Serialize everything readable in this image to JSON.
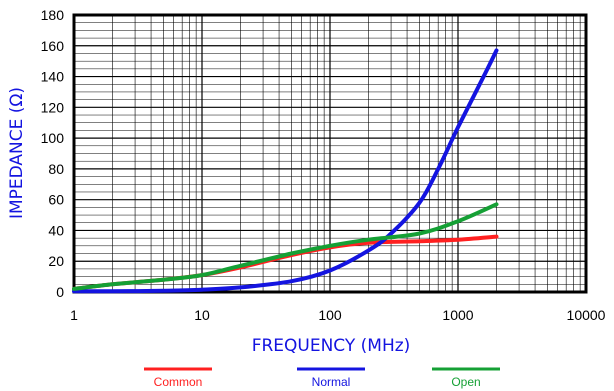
{
  "chart_data": {
    "type": "line",
    "xlabel": "FREQUENCY (MHz)",
    "ylabel": "IMPEDANCE (Ω)",
    "x_scale": "log",
    "xlim": [
      1,
      10000
    ],
    "ylim": [
      0,
      180
    ],
    "grid": true,
    "x_ticks": [
      "1",
      "10",
      "100",
      "1000",
      "10000"
    ],
    "y_ticks": [
      "0",
      "20",
      "40",
      "60",
      "80",
      "100",
      "120",
      "140",
      "160",
      "180"
    ],
    "legend_position": "bottom",
    "series": [
      {
        "name": "Common",
        "color": "#ff2020",
        "x": [
          1,
          2,
          5,
          10,
          20,
          50,
          100,
          200,
          500,
          1000,
          2000
        ],
        "y": [
          2,
          5,
          8,
          11,
          16,
          24,
          29,
          32,
          33,
          34,
          36
        ]
      },
      {
        "name": "Normal",
        "color": "#1414e0",
        "x": [
          1,
          2,
          5,
          10,
          20,
          50,
          100,
          200,
          300,
          500,
          700,
          1000,
          1500,
          2000
        ],
        "y": [
          0.5,
          0.5,
          0.8,
          1.5,
          3,
          7,
          14,
          27,
          38,
          58,
          80,
          107,
          136,
          157
        ]
      },
      {
        "name": "Open",
        "color": "#15a035",
        "x": [
          1,
          2,
          5,
          10,
          20,
          50,
          100,
          200,
          500,
          1000,
          2000
        ],
        "y": [
          2,
          5,
          8,
          11,
          17,
          25,
          30,
          34,
          38,
          46,
          57
        ]
      }
    ]
  }
}
